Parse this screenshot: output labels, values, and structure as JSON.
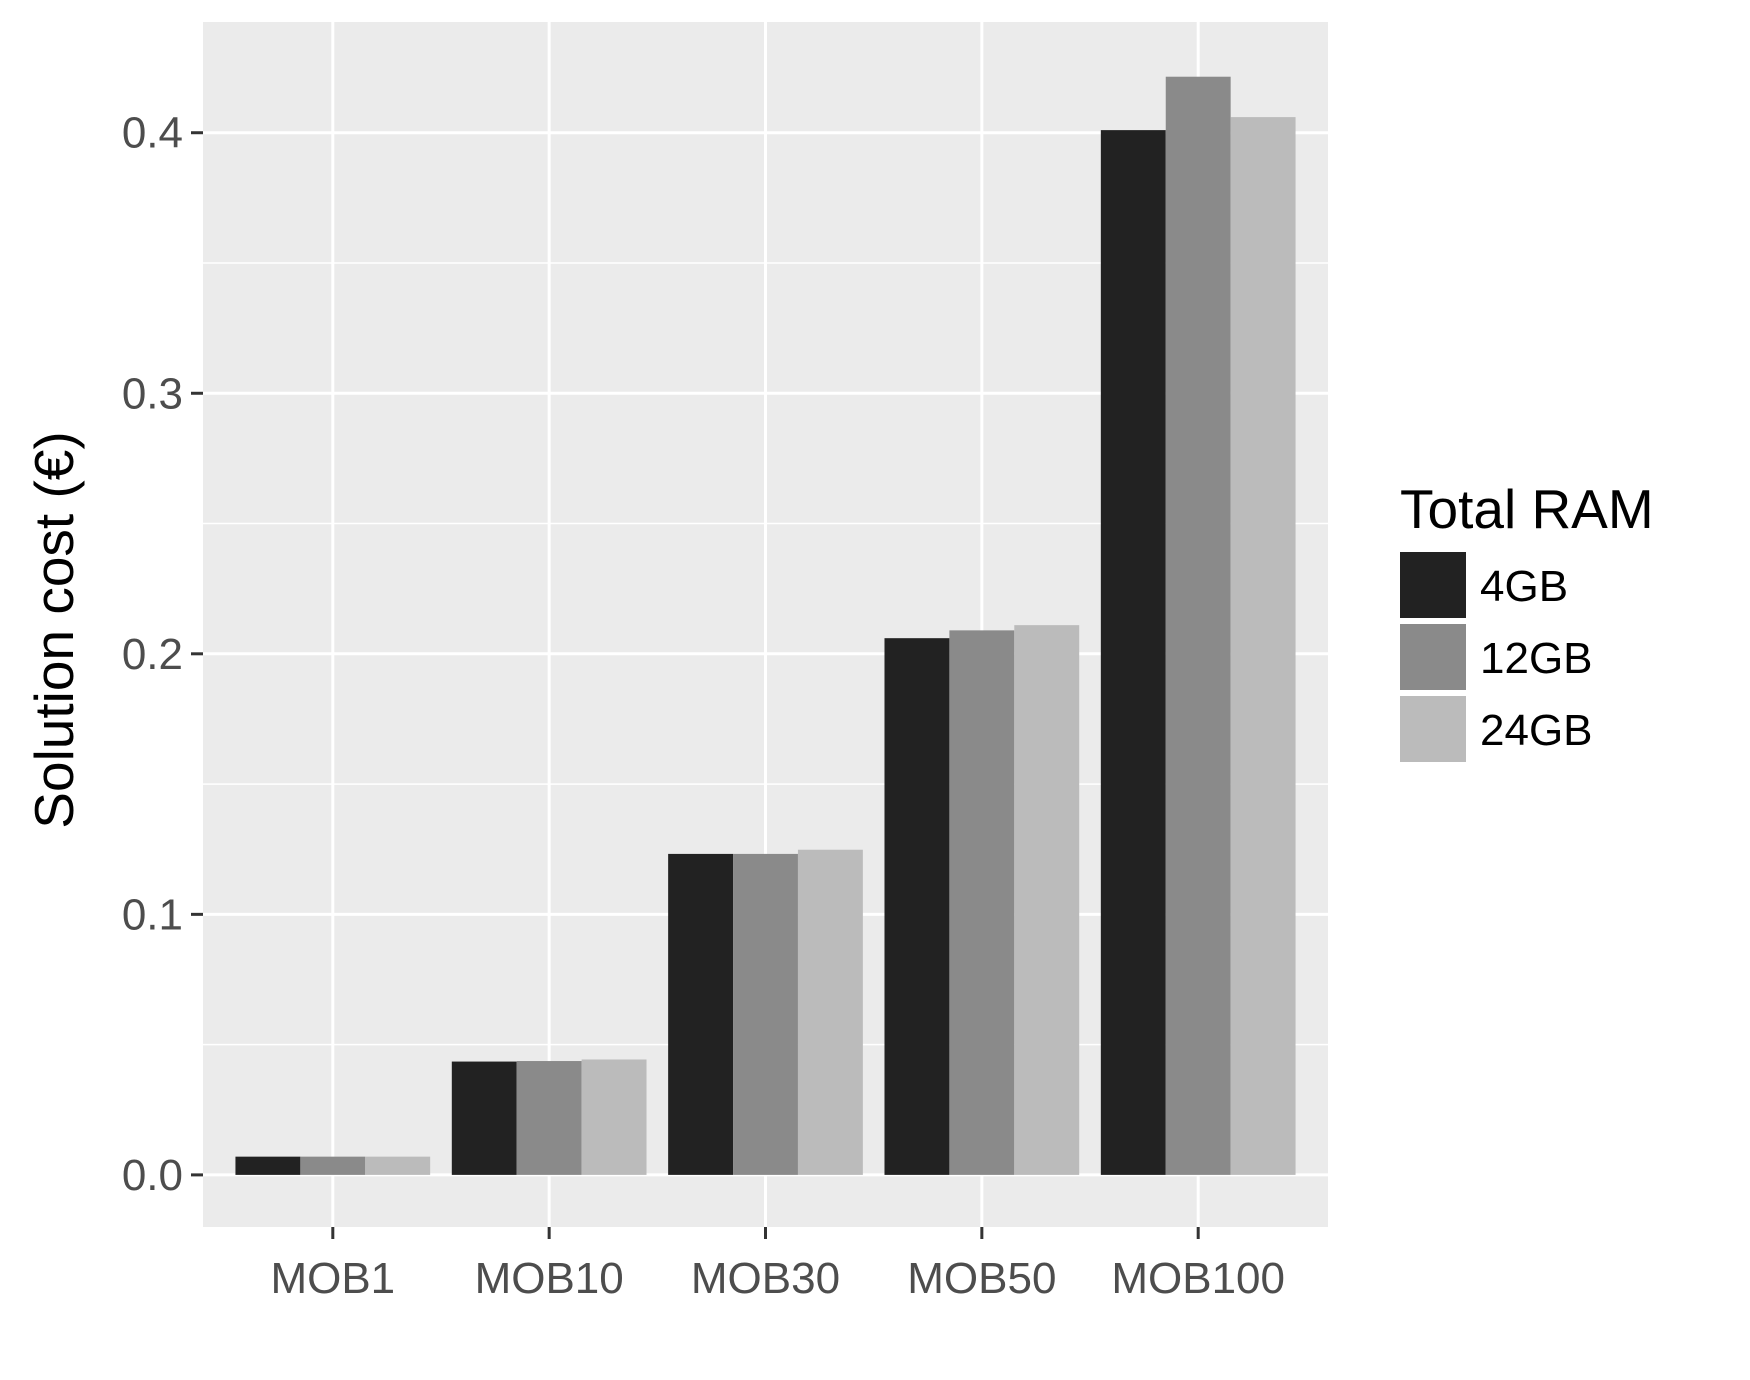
{
  "chart_data": {
    "type": "bar",
    "title": "",
    "xlabel": "",
    "ylabel": "Solution cost (€)",
    "categories": [
      "MOB1",
      "MOB10",
      "MOB30",
      "MOB50",
      "MOB100"
    ],
    "series": [
      {
        "name": "4GB",
        "color": "#222222",
        "values": [
          0.007,
          0.0435,
          0.1232,
          0.206,
          0.401
        ]
      },
      {
        "name": "12GB",
        "color": "#8a8a8a",
        "values": [
          0.007,
          0.0437,
          0.1232,
          0.209,
          0.4215
        ]
      },
      {
        "name": "24GB",
        "color": "#bbbbbb",
        "values": [
          0.007,
          0.0443,
          0.1248,
          0.211,
          0.406
        ]
      }
    ],
    "ylim": [
      -0.02,
      0.4425
    ],
    "yticks": [
      0.0,
      0.1,
      0.2,
      0.3,
      0.4
    ],
    "ytick_labels": [
      "0.0",
      "0.1",
      "0.2",
      "0.3",
      "0.4"
    ],
    "legend": {
      "title": "Total RAM",
      "position": "right"
    },
    "grid": true,
    "panel_background": "#ebebeb",
    "grid_color": "#ffffff"
  }
}
